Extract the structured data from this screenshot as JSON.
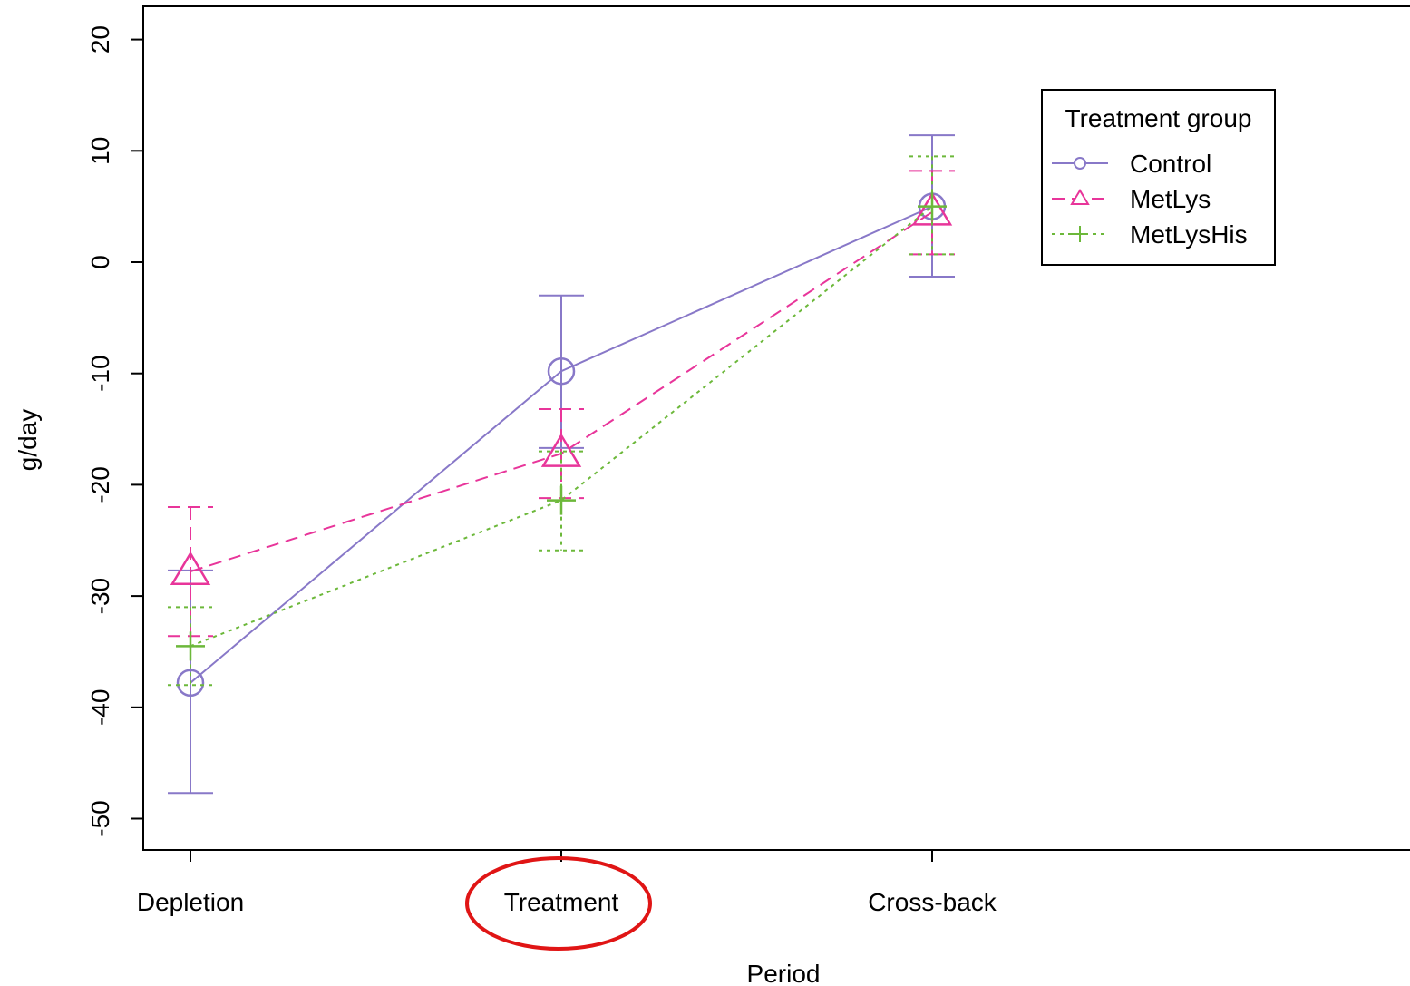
{
  "chart_data": {
    "type": "line",
    "title": "",
    "xlabel": "Period",
    "ylabel": "g/day",
    "categories": [
      "Depletion",
      "Treatment",
      "Cross-back"
    ],
    "ylim": [
      -52,
      24
    ],
    "yticks": [
      20,
      10,
      0,
      -10,
      -20,
      -30,
      -40,
      -50
    ],
    "grid": false,
    "legend": {
      "title": "Treatment group",
      "placement": "top-right",
      "entries": [
        "Control",
        "MetLys",
        "MetLysHis"
      ]
    },
    "series": [
      {
        "name": "Control",
        "color": "#8878c8",
        "line": "solid",
        "marker": "circle",
        "values": [
          -37.8,
          -9.8,
          5.0
        ],
        "lower": [
          -47.7,
          -16.7,
          -1.3
        ],
        "upper": [
          -27.7,
          -3.0,
          11.4
        ]
      },
      {
        "name": "MetLys",
        "color": "#e8359a",
        "line": "dashed",
        "marker": "triangle",
        "values": [
          -27.8,
          -17.2,
          4.5
        ],
        "lower": [
          -33.6,
          -21.2,
          0.7
        ],
        "upper": [
          -22.0,
          -13.2,
          8.2
        ]
      },
      {
        "name": "MetLysHis",
        "color": "#6cb83a",
        "line": "dotted",
        "marker": "plus",
        "values": [
          -34.5,
          -21.4,
          5.0
        ],
        "lower": [
          -38.0,
          -25.9,
          0.7
        ],
        "upper": [
          -31.0,
          -17.0,
          9.5
        ]
      }
    ]
  },
  "annotations": {
    "highlight_color": "#e01515"
  }
}
